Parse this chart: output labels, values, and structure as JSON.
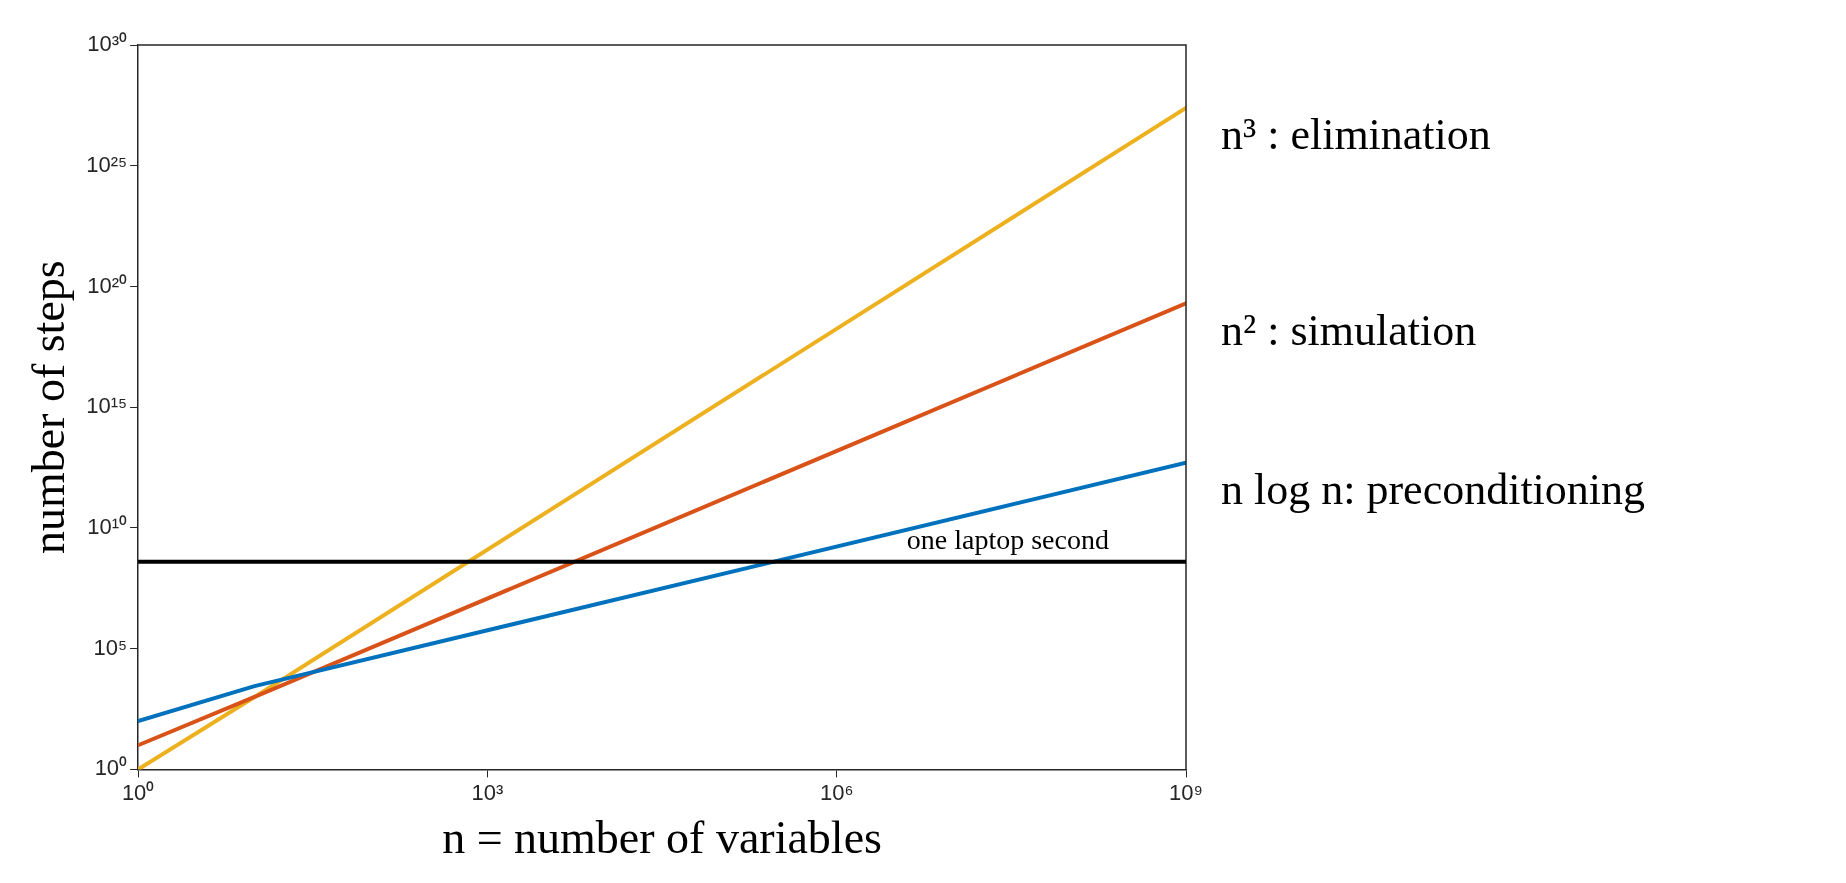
{
  "chart_data": {
    "type": "line",
    "xlabel": "n = number of variables",
    "ylabel": "number of steps",
    "log": "xy",
    "x": [
      1,
      10,
      1000000000
    ],
    "series": [
      {
        "name": "n log n: preconditioning",
        "color": "#0072bd",
        "values": [
          100,
          2800,
          5000000000000
        ]
      },
      {
        "name": "n² : simulation",
        "color": "#d95319",
        "values": [
          10,
          1000,
          20000000000000000000
        ]
      },
      {
        "name": "n³ : elimination",
        "color": "#edb120",
        "values": [
          1,
          1000,
          2.5e+27
        ]
      }
    ],
    "xlim": [
      1,
      1000000000
    ],
    "xticks": [
      {
        "value": 1,
        "label": "10⁰"
      },
      {
        "value": 1000,
        "label": "10³"
      },
      {
        "value": 1000000,
        "label": "10⁶"
      },
      {
        "value": 1000000000,
        "label": "10⁹"
      }
    ],
    "ylim": [
      1,
      1e+30
    ],
    "yticks": [
      {
        "value": 1,
        "label": "10⁰"
      },
      {
        "value": 100000,
        "label": "10⁵"
      },
      {
        "value": 10000000000,
        "label": "10¹⁰"
      },
      {
        "value": 1000000000000000.0,
        "label": "10¹⁵"
      },
      {
        "value": 1e+20,
        "label": "10²⁰"
      },
      {
        "value": 1e+25,
        "label": "10²⁵"
      },
      {
        "value": 1e+30,
        "label": "10³⁰"
      }
    ],
    "ref_lines": [
      {
        "axis": "y",
        "value": 400000000,
        "label": "one laptop second",
        "color": "#000000"
      }
    ]
  }
}
